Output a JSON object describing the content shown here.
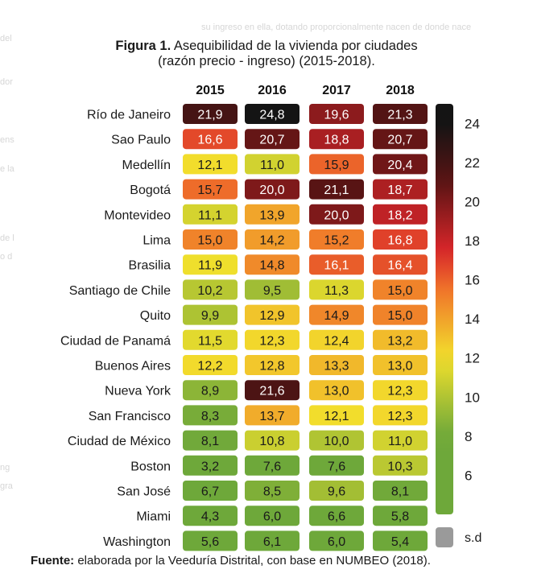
{
  "chart_data": {
    "type": "heatmap",
    "title_bold": "Figura 1.",
    "title_rest": "Asequibilidad de la vivienda por ciudades",
    "subtitle": "(razón precio - ingreso) (2015-2018).",
    "years": [
      "2015",
      "2016",
      "2017",
      "2018"
    ],
    "rows": [
      {
        "city": "Río de Janeiro",
        "values": [
          "21,9",
          "24,8",
          "19,6",
          "21,3"
        ]
      },
      {
        "city": "Sao Paulo",
        "values": [
          "16,6",
          "20,7",
          "18,8",
          "20,7"
        ]
      },
      {
        "city": "Medellín",
        "values": [
          "12,1",
          "11,0",
          "15,9",
          "20,4"
        ]
      },
      {
        "city": "Bogotá",
        "values": [
          "15,7",
          "20,0",
          "21,1",
          "18,7"
        ]
      },
      {
        "city": "Montevideo",
        "values": [
          "11,1",
          "13,9",
          "20,0",
          "18,2"
        ]
      },
      {
        "city": "Lima",
        "values": [
          "15,0",
          "14,2",
          "15,2",
          "16,8"
        ]
      },
      {
        "city": "Brasilia",
        "values": [
          "11,9",
          "14,8",
          "16,1",
          "16,4"
        ]
      },
      {
        "city": "Santiago de Chile",
        "values": [
          "10,2",
          "9,5",
          "11,3",
          "15,0"
        ]
      },
      {
        "city": "Quito",
        "values": [
          "9,9",
          "12,9",
          "14,9",
          "15,0"
        ]
      },
      {
        "city": "Ciudad de Panamá",
        "values": [
          "11,5",
          "12,3",
          "12,4",
          "13,2"
        ]
      },
      {
        "city": "Buenos Aires",
        "values": [
          "12,2",
          "12,8",
          "13,3",
          "13,0"
        ]
      },
      {
        "city": "Nueva York",
        "values": [
          "8,9",
          "21,6",
          "13,0",
          "12,3"
        ]
      },
      {
        "city": "San Francisco",
        "values": [
          "8,3",
          "13,7",
          "12,1",
          "12,3"
        ]
      },
      {
        "city": "Ciudad de México",
        "values": [
          "8,1",
          "10,8",
          "10,0",
          "11,0"
        ]
      },
      {
        "city": "Boston",
        "values": [
          "3,2",
          "7,6",
          "7,6",
          "10,3"
        ]
      },
      {
        "city": "San José",
        "values": [
          "6,7",
          "8,5",
          "9,6",
          "8,1"
        ]
      },
      {
        "city": "Miami",
        "values": [
          "4,3",
          "6,0",
          "6,6",
          "5,8"
        ]
      },
      {
        "city": "Washington",
        "values": [
          "5,6",
          "6,1",
          "6,0",
          "5,4"
        ]
      }
    ],
    "colorbar": {
      "ticks": [
        "24",
        "22",
        "20",
        "18",
        "16",
        "14",
        "12",
        "10",
        "8",
        "6"
      ],
      "range": [
        4,
        25
      ],
      "no_data_label": "s.d"
    },
    "colors": {
      "black": "#141414",
      "dark_red": "#5a1414",
      "red": "#d8262a",
      "orange": "#f0742a",
      "yellow": "#f2e02c",
      "green": "#6ea83a",
      "no_data": "#9a9a9a"
    }
  },
  "background_text": {
    "top": "su ingreso en ella, dotando proporcionalmente nacen de donde nace",
    "l1": "del",
    "l2": "dor",
    "l3": "ens",
    "l4": "e la",
    "l5": "de l",
    "l6": "o d",
    "l7": "ng",
    "l8": "gra"
  },
  "source": {
    "bold": "Fuente:",
    "rest": "elaborada por la Veeduría Distrital, con base en NUMBEO (2018)."
  }
}
